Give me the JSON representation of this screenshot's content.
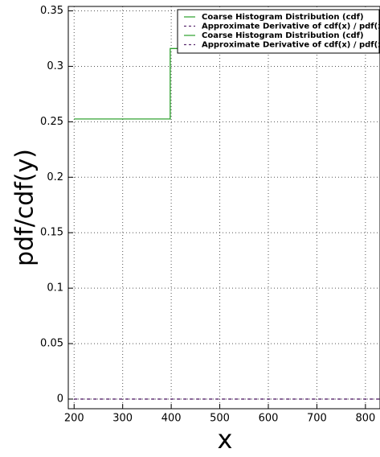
{
  "chart_data": {
    "type": "line",
    "x_label": "x",
    "y_label": "pdf/cdf(y)",
    "xlim": [
      188,
      830
    ],
    "ylim": [
      -0.0087,
      0.354
    ],
    "xticks": [
      200,
      300,
      400,
      500,
      600,
      700,
      800
    ],
    "yticks": [
      0,
      0.05,
      0.1,
      0.15,
      0.2,
      0.25,
      0.3,
      0.35
    ],
    "grid": true,
    "legend": "upper right",
    "series": [
      {
        "name": "Coarse Histogram Distribution (cdf)",
        "color": "#2ca02c",
        "style": "solid",
        "x": [
          200,
          398,
          398,
          830
        ],
        "values": [
          0.2525,
          0.2525,
          0.316,
          0.316
        ]
      },
      {
        "name": "Approximate Derivative of cdf(x) / pdf(x)",
        "color": "#5b2c6f",
        "style": "dashed",
        "x": [
          200,
          830
        ],
        "values": [
          0,
          0
        ]
      },
      {
        "name": "Coarse Histogram Distribution (cdf)",
        "color": "#2ca02c",
        "style": "solid",
        "x": [
          200,
          398,
          398,
          830
        ],
        "values": [
          0.2525,
          0.2525,
          0.316,
          0.316
        ]
      },
      {
        "name": "Approximate Derivative of cdf(x) / pdf(x)",
        "color": "#5b2c6f",
        "style": "dashed",
        "x": [
          200,
          830
        ],
        "values": [
          0,
          0
        ]
      }
    ]
  }
}
